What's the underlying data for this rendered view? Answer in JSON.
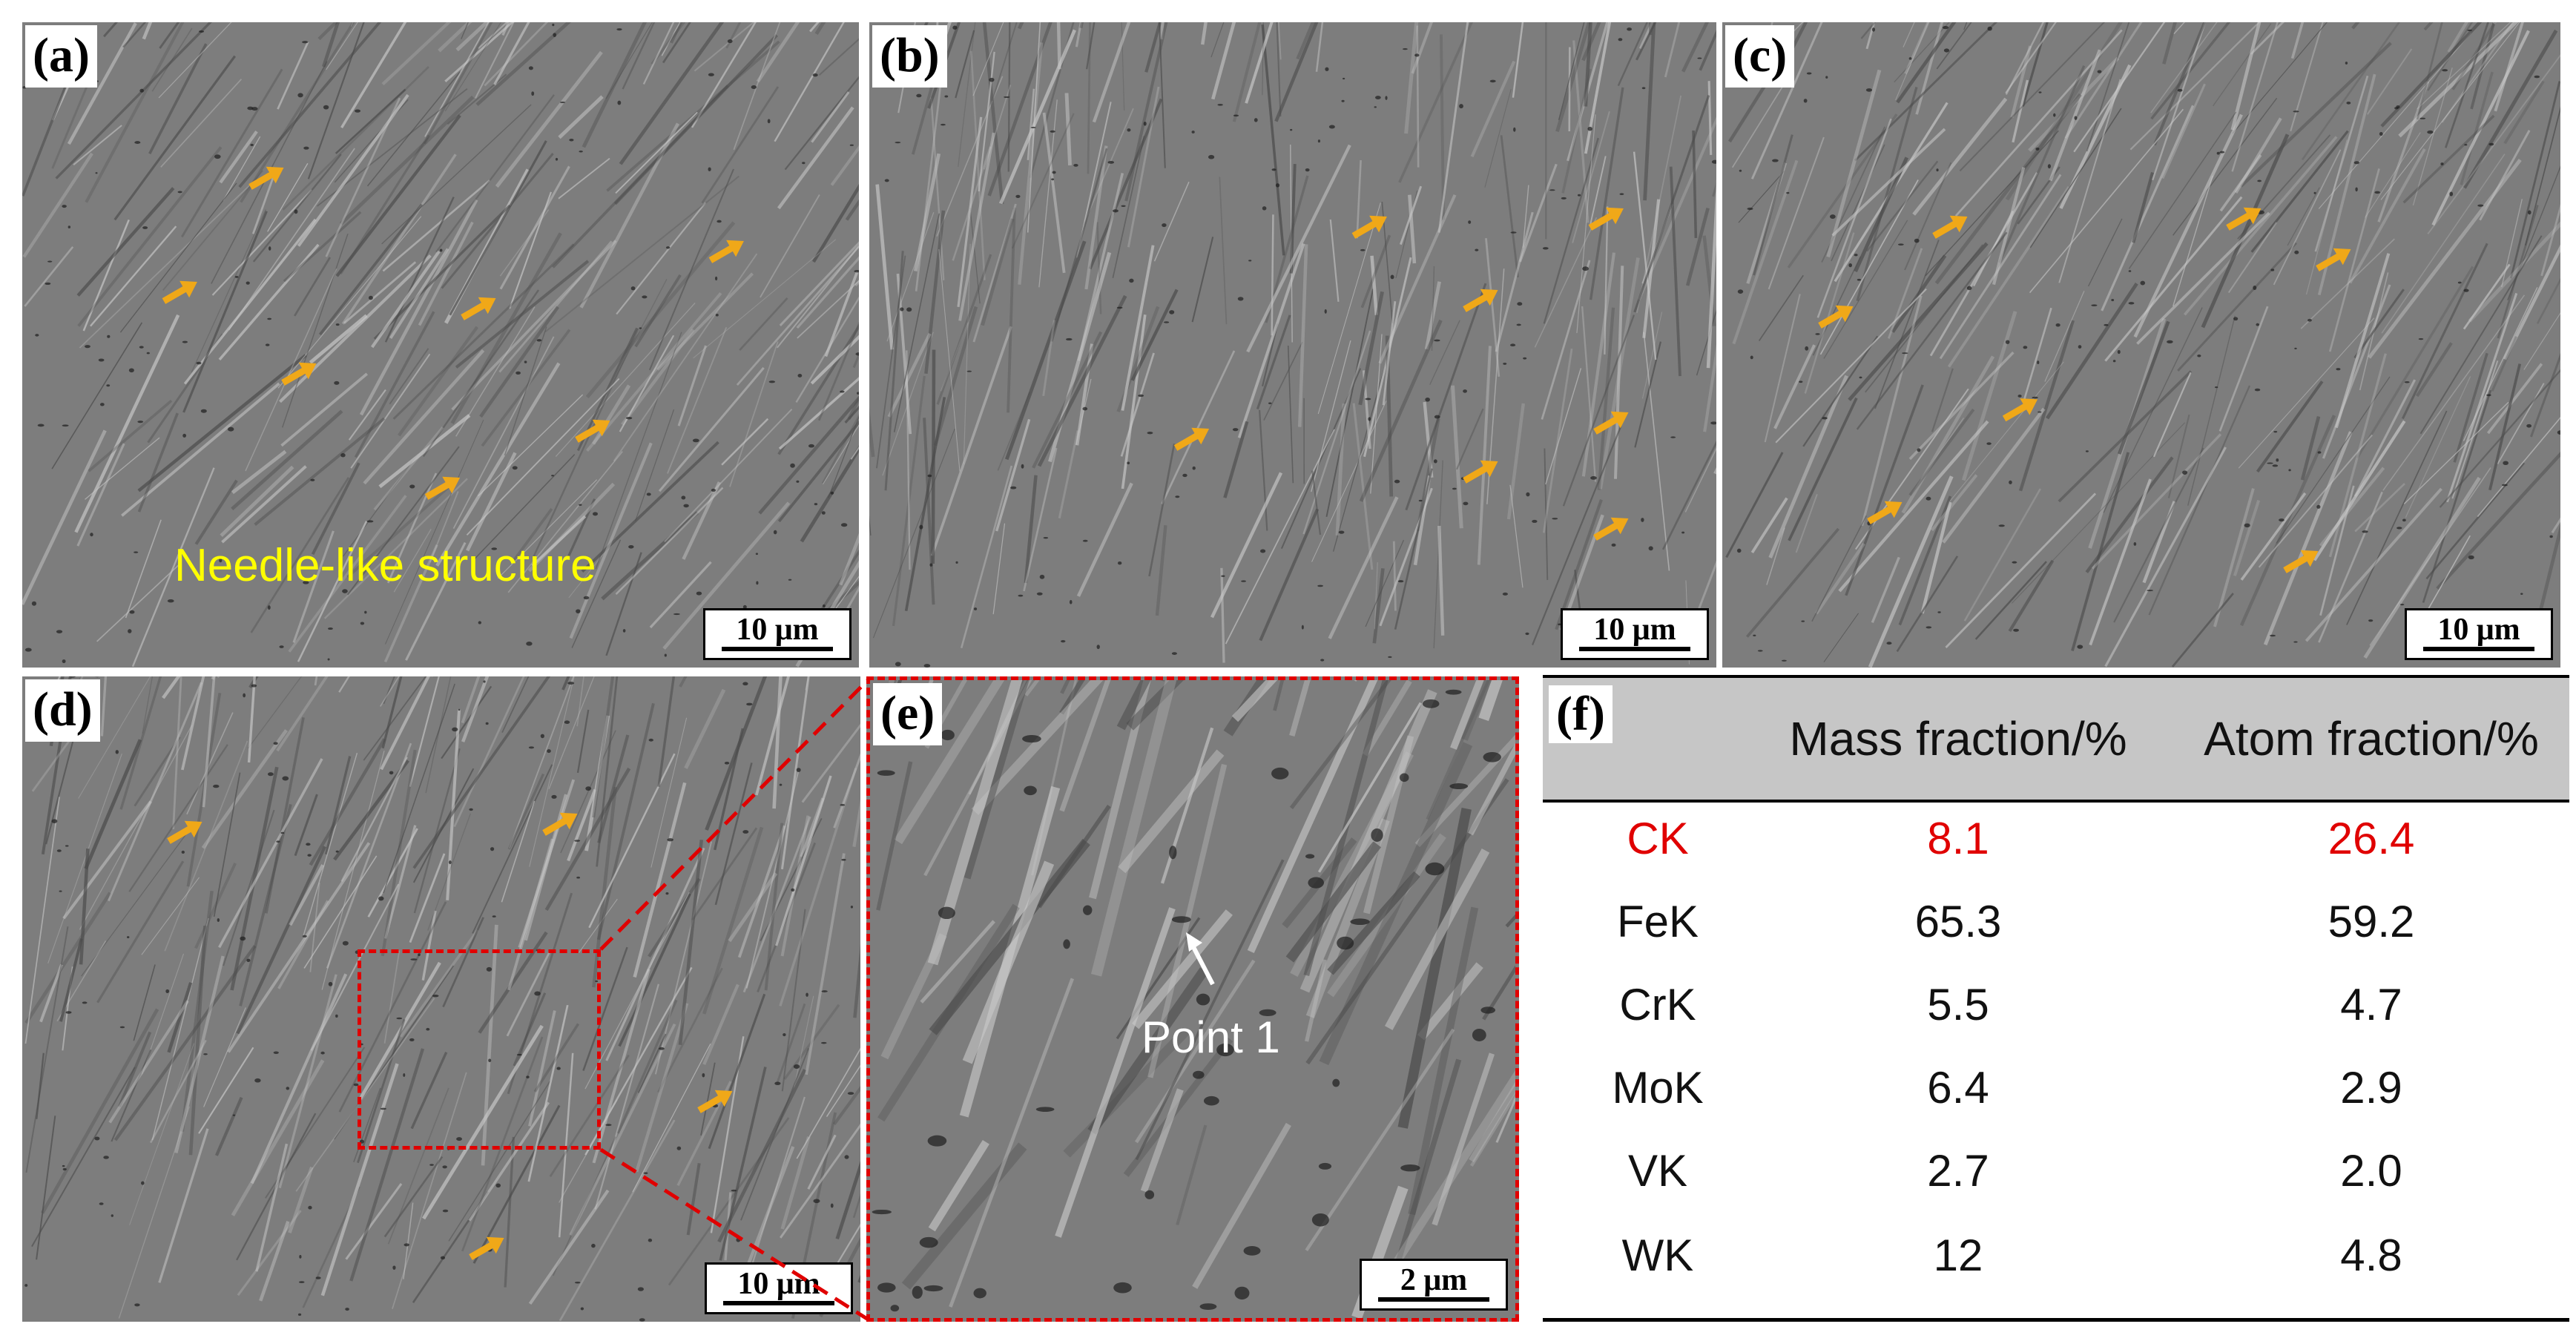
{
  "colors": {
    "arrow": "#f0a818",
    "highlight_red": "#e00000",
    "annotation_yellow": "#ffff00",
    "sem_gray": "#7d7d7d"
  },
  "icons": {
    "arrow": "orange-arrow-icon",
    "point_marker": "white-arrow-icon"
  },
  "panels": {
    "a": {
      "label": "(a)",
      "scale": "10 μm",
      "annotation": "Needle-like structure"
    },
    "b": {
      "label": "(b)",
      "scale": "10 μm"
    },
    "c": {
      "label": "(c)",
      "scale": "10 μm"
    },
    "d": {
      "label": "(d)",
      "scale": "10 μm"
    },
    "e": {
      "label": "(e)",
      "scale": "2 μm",
      "annotation": "Point 1"
    }
  },
  "table": {
    "label": "(f)",
    "headers": [
      "",
      "Mass fraction/%",
      "Atom fraction/%"
    ],
    "rows": [
      {
        "element": "CK",
        "mass": "8.1",
        "atom": "26.4",
        "highlight": true
      },
      {
        "element": "FeK",
        "mass": "65.3",
        "atom": "59.2",
        "highlight": false
      },
      {
        "element": "CrK",
        "mass": "5.5",
        "atom": "4.7",
        "highlight": false
      },
      {
        "element": "MoK",
        "mass": "6.4",
        "atom": "2.9",
        "highlight": false
      },
      {
        "element": "VK",
        "mass": "2.7",
        "atom": "2.0",
        "highlight": false
      },
      {
        "element": "WK",
        "mass": "12",
        "atom": "4.8",
        "highlight": false
      }
    ]
  }
}
